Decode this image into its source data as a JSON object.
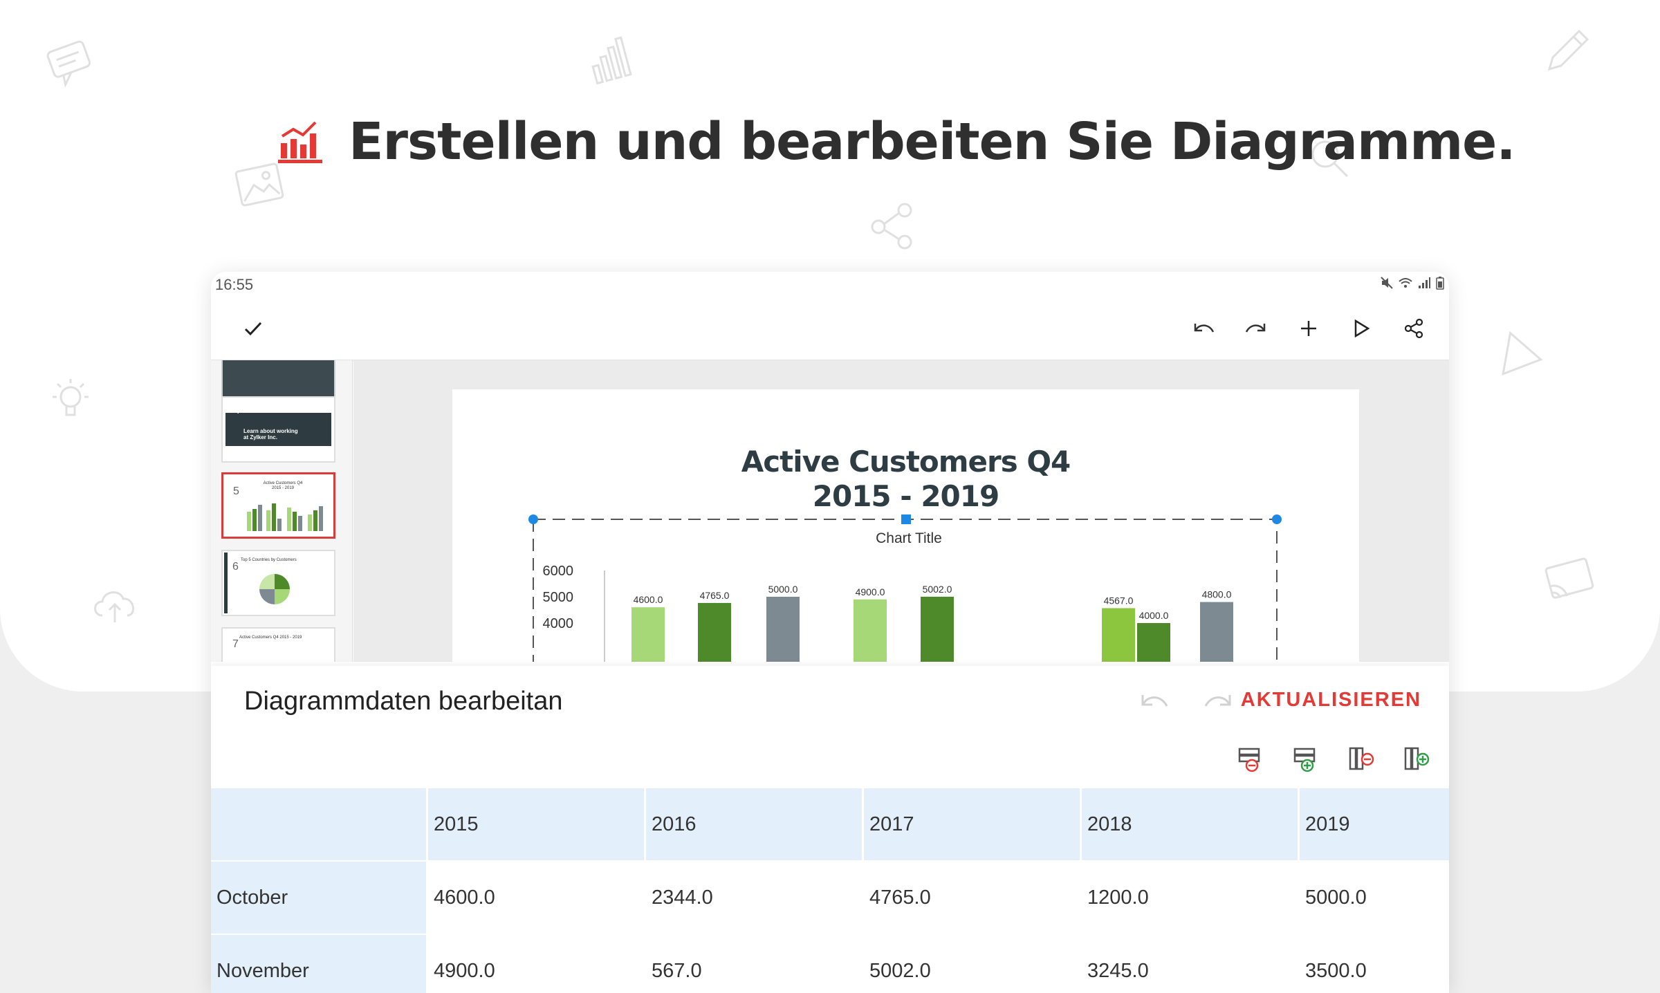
{
  "headline": "Erstellen und bearbeiten Sie Diagramme.",
  "colors": {
    "accent": "#e53935",
    "title": "#2f2f2f",
    "header_bg": "#e3f0fb",
    "green_light": "#a6d878",
    "green_dark": "#4e8a2a",
    "gray_bar": "#7d8a92",
    "selection": "#1e88e5"
  },
  "status_bar": {
    "time": "16:55",
    "icons": [
      "mute-icon",
      "wifi-icon",
      "signal-icon",
      "battery-icon"
    ]
  },
  "toolbar": {
    "icons": [
      "check-icon",
      "undo-icon",
      "redo-icon",
      "plus-icon",
      "play-icon",
      "share-icon"
    ]
  },
  "thumbnails": [
    {
      "number": "4",
      "title": "Learn about working at Zylker Inc."
    },
    {
      "number": "5",
      "title": "Active Customers Q4 2015 - 2019"
    },
    {
      "number": "6",
      "title": "Top 5 Countries by Customers"
    },
    {
      "number": "7",
      "title": "Active Customers Q4 2015 - 2019"
    }
  ],
  "slide": {
    "title_line1": "Active Customers Q4",
    "title_line2": "2015 - 2019"
  },
  "chart_data": {
    "type": "bar",
    "title": "Chart Title",
    "ylim": [
      3500,
      6000
    ],
    "yticks": [
      "6000",
      "5000",
      "4000"
    ],
    "visible_bars": [
      {
        "value": 4600.0,
        "label": "4600.0",
        "color": "green_light"
      },
      {
        "value": 4765.0,
        "label": "4765.0",
        "color": "green_dark"
      },
      {
        "value": 5000.0,
        "label": "5000.0",
        "color": "gray_bar"
      },
      {
        "value": 4900.0,
        "label": "4900.0",
        "color": "green_light"
      },
      {
        "value": 5002.0,
        "label": "5002.0",
        "color": "green_dark"
      },
      {
        "value": 4567.0,
        "label": "4567.0",
        "color": "green_light2"
      },
      {
        "value": 4000.0,
        "label": "4000.0",
        "color": "green_dark"
      },
      {
        "value": 4800.0,
        "label": "4800.0",
        "color": "gray_bar"
      }
    ]
  },
  "panel": {
    "title": "Diagrammdaten bearbeitan",
    "update_label": "AKTUALISIEREN",
    "tools": [
      "delete-row-icon",
      "add-row-icon",
      "delete-column-icon",
      "add-column-icon"
    ]
  },
  "table": {
    "headers": [
      "",
      "2015",
      "2016",
      "2017",
      "2018",
      "2019"
    ],
    "rows": [
      {
        "label": "October",
        "values": [
          "4600.0",
          "2344.0",
          "4765.0",
          "1200.0",
          "5000.0"
        ]
      },
      {
        "label": "November",
        "values": [
          "4900.0",
          "567.0",
          "5002.0",
          "3245.0",
          "3500.0"
        ]
      }
    ]
  }
}
